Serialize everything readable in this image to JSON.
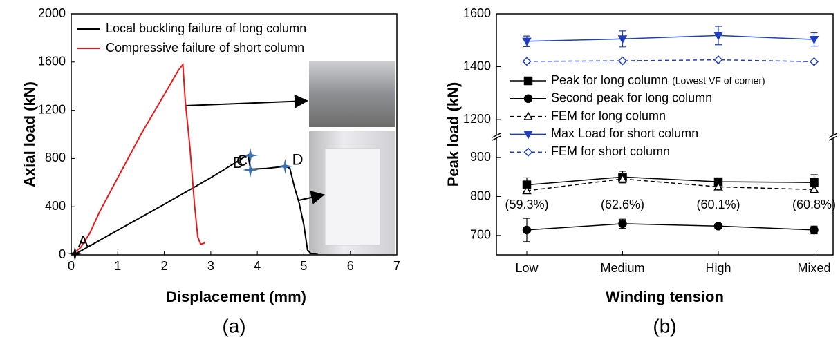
{
  "chart_data": [
    {
      "type": "line",
      "caption": "(a)",
      "xlabel": "Displacement (mm)",
      "ylabel": "Axial load (kN)",
      "xlim": [
        0,
        7
      ],
      "xticks": [
        0,
        1,
        2,
        3,
        4,
        5,
        6,
        7
      ],
      "ylim": [
        0,
        2000
      ],
      "yticks": [
        0,
        400,
        800,
        1200,
        1600,
        2000
      ],
      "series": [
        {
          "name": "Local buckling failure of long column",
          "color": "#000000",
          "x": [
            0,
            0.1,
            1,
            2,
            3,
            3.8,
            3.85,
            3.9,
            4.2,
            4.6,
            4.7,
            4.8,
            4.9,
            5.0,
            5.08,
            5.15,
            5.3
          ],
          "values": [
            0,
            10,
            205,
            420,
            640,
            830,
            720,
            712,
            718,
            735,
            720,
            560,
            430,
            250,
            40,
            12,
            10
          ]
        },
        {
          "name": "Compressive failure of short column",
          "color": "#e8191a",
          "x": [
            0,
            0.2,
            0.4,
            0.6,
            1.0,
            1.5,
            2.0,
            2.3,
            2.4,
            2.45,
            2.55,
            2.65,
            2.72,
            2.78,
            2.85,
            2.88
          ],
          "values": [
            0,
            60,
            180,
            350,
            640,
            1000,
            1330,
            1530,
            1580,
            1280,
            900,
            420,
            150,
            90,
            95,
            110
          ]
        }
      ],
      "annotations": [
        {
          "text": "A",
          "x": 0.08,
          "y": 10,
          "color": "#000000"
        },
        {
          "text": "B",
          "x": 3.85,
          "y": 825,
          "color": "#3a6fb0"
        },
        {
          "text": "C",
          "x": 3.85,
          "y": 705,
          "color": "#3a6fb0"
        },
        {
          "text": "D",
          "x": 4.6,
          "y": 735,
          "color": "#3a6fb0"
        }
      ]
    },
    {
      "type": "line",
      "caption": "(b)",
      "xlabel": "Winding tension",
      "ylabel": "Peak load (kN)",
      "categories": [
        "Low",
        "Medium",
        "High",
        "Mixed"
      ],
      "ylim": [
        650,
        1600
      ],
      "ybreak": [
        950,
        1140
      ],
      "yticks": [
        700,
        800,
        900,
        1200,
        1400,
        1600
      ],
      "legend_note": "(Lowest VF of corner)",
      "series": [
        {
          "name": "Peak for long column",
          "color": "#000000",
          "marker": "square",
          "dashed": false,
          "values": [
            830,
            850,
            838,
            836
          ],
          "errors": [
            18,
            15,
            8,
            20
          ]
        },
        {
          "name": "Second peak for long column",
          "color": "#000000",
          "marker": "circle",
          "dashed": false,
          "values": [
            714,
            730,
            724,
            714
          ],
          "errors": [
            30,
            12,
            5,
            10
          ]
        },
        {
          "name": "FEM for long column",
          "color": "#000000",
          "marker": "triangle-open",
          "dashed": true,
          "values": [
            815,
            845,
            825,
            818
          ]
        },
        {
          "name": "Max Load for short column",
          "color": "#1f3fbf",
          "marker": "triangle-down",
          "dashed": false,
          "values": [
            1496,
            1505,
            1518,
            1503
          ],
          "errors": [
            20,
            30,
            35,
            25
          ]
        },
        {
          "name": "FEM for short column",
          "color": "#1f3fbf",
          "marker": "diamond-open",
          "dashed": true,
          "values": [
            1420,
            1422,
            1426,
            1419
          ]
        }
      ],
      "annotations": [
        "(59.3%)",
        "(62.6%)",
        "(60.1%)",
        "(60.8%)"
      ]
    }
  ]
}
